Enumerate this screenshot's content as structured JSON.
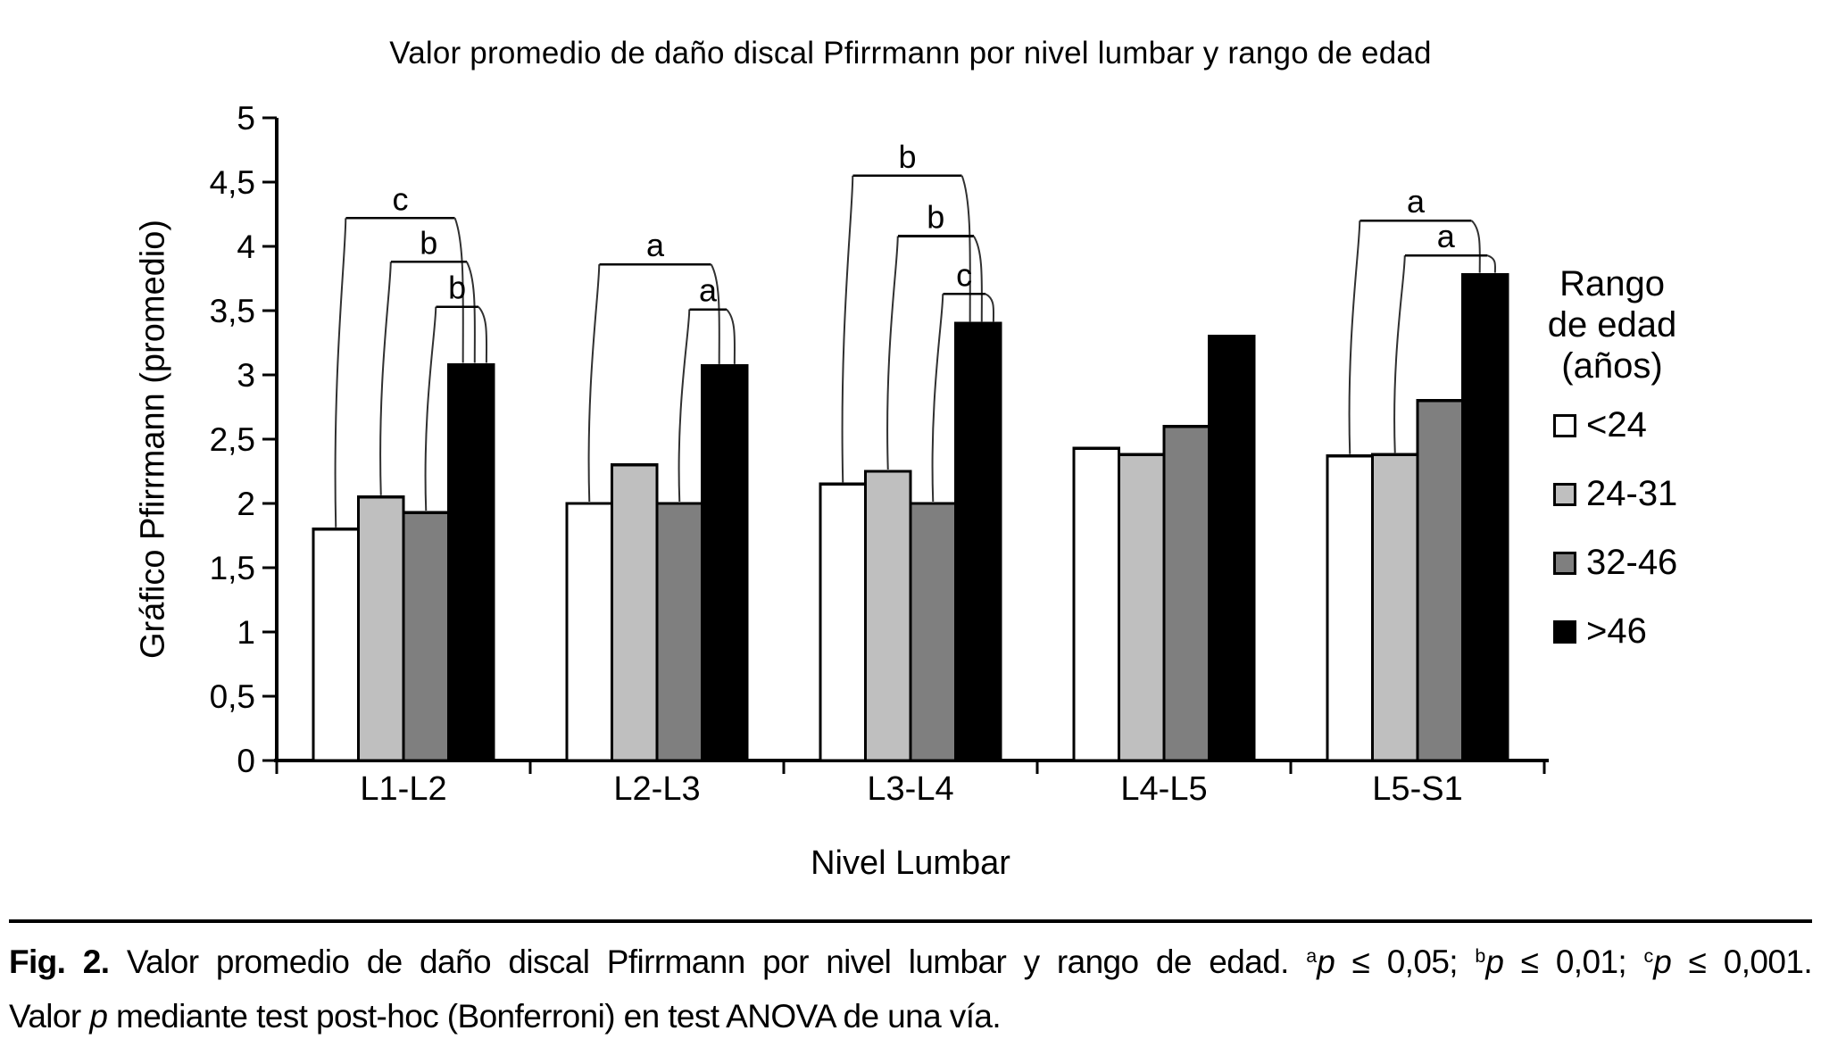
{
  "chart_data": {
    "type": "bar",
    "title": "Valor promedio de daño discal Pfirrmann por nivel lumbar y rango de edad",
    "xlabel": "Nivel Lumbar",
    "ylabel": "Gráfico Pfirrmann (promedio)",
    "ylim": [
      0,
      5
    ],
    "ytick_step": 0.5,
    "ytick_labels": [
      "0",
      "0,5",
      "1",
      "1,5",
      "2",
      "2,5",
      "3",
      "3,5",
      "4",
      "4,5",
      "5"
    ],
    "grid": false,
    "categories": [
      "L1-L2",
      "L2-L3",
      "L3-L4",
      "L4-L5",
      "L5-S1"
    ],
    "series": [
      {
        "name": "<24",
        "color": "#ffffff",
        "values": [
          1.8,
          2.0,
          2.15,
          2.43,
          2.37
        ]
      },
      {
        "name": "24-31",
        "color": "#bfbfbf",
        "values": [
          2.05,
          2.3,
          2.25,
          2.38,
          2.38
        ]
      },
      {
        "name": "32-46",
        "color": "#7f7f7f",
        "values": [
          1.93,
          2.0,
          2.0,
          2.6,
          2.8
        ]
      },
      {
        "name": ">46",
        "color": "#000000",
        "values": [
          3.08,
          3.07,
          3.4,
          3.3,
          3.78
        ]
      }
    ],
    "legend": {
      "position": "right",
      "title_lines": [
        "Rango",
        "de edad",
        "(años)"
      ]
    },
    "significance_brackets": [
      {
        "category": "L1-L2",
        "label": "c",
        "from_series": "<24",
        "to_series": ">46",
        "top": 4.22
      },
      {
        "category": "L1-L2",
        "label": "b",
        "from_series": "24-31",
        "to_series": ">46",
        "top": 3.88
      },
      {
        "category": "L1-L2",
        "label": "b",
        "from_series": "32-46",
        "to_series": ">46",
        "top": 3.53
      },
      {
        "category": "L2-L3",
        "label": "a",
        "from_series": "<24",
        "to_series": ">46",
        "top": 3.86
      },
      {
        "category": "L2-L3",
        "label": "a",
        "from_series": "32-46",
        "to_series": ">46",
        "top": 3.51
      },
      {
        "category": "L3-L4",
        "label": "b",
        "from_series": "<24",
        "to_series": ">46",
        "top": 4.55
      },
      {
        "category": "L3-L4",
        "label": "b",
        "from_series": "24-31",
        "to_series": ">46",
        "top": 4.08
      },
      {
        "category": "L3-L4",
        "label": "c",
        "from_series": "32-46",
        "to_series": ">46",
        "top": 3.63
      },
      {
        "category": "L5-S1",
        "label": "a",
        "from_series": "<24",
        "to_series": ">46",
        "top": 4.2
      },
      {
        "category": "L5-S1",
        "label": "a",
        "from_series": "24-31",
        "to_series": ">46",
        "top": 3.93
      }
    ]
  },
  "caption": {
    "line1": [
      {
        "text": "Fig. 2.",
        "bold": true
      },
      {
        "text": " Valor promedio de daño discal Pfirrmann por nivel lumbar y rango de edad. "
      },
      {
        "text": "a",
        "sup": true
      },
      {
        "text": "p",
        "italic": true
      },
      {
        "text": " ≤ 0,05; "
      },
      {
        "text": "b",
        "sup": true
      },
      {
        "text": "p",
        "italic": true
      },
      {
        "text": " ≤ 0,01; "
      },
      {
        "text": "c",
        "sup": true
      },
      {
        "text": "p",
        "italic": true
      },
      {
        "text": " ≤ 0,001."
      }
    ],
    "line2": [
      {
        "text": "Valor "
      },
      {
        "text": "p",
        "italic": true
      },
      {
        "text": " mediante test post-hoc (Bonferroni) en test ANOVA de una vía."
      }
    ]
  }
}
